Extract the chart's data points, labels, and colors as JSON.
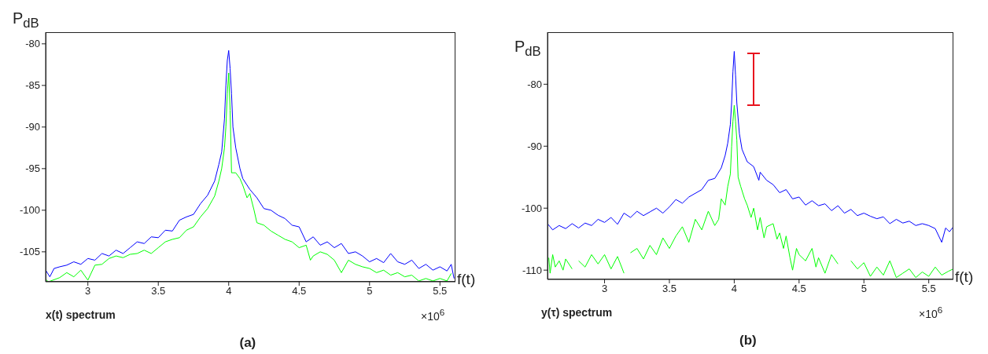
{
  "chart_data": [
    {
      "type": "line",
      "ylabel": "P$_{dB}$",
      "xlabel": "f(t)",
      "annotations": [
        "x(t) spectrum",
        "×10$^{6}$",
        "(a)"
      ],
      "xlim": [
        2.7,
        5.61
      ],
      "ylim": [
        -108.6,
        -78.6
      ],
      "xticks": [
        3,
        3.5,
        4,
        4.5,
        5,
        5.5
      ],
      "yticks": [
        -105,
        -100,
        -95,
        -90,
        -85,
        -80
      ],
      "series": [
        {
          "color": "#0000ff",
          "x": [
            2.7,
            2.73,
            2.76,
            2.8,
            2.85,
            2.9,
            2.95,
            3.0,
            3.05,
            3.1,
            3.15,
            3.2,
            3.25,
            3.3,
            3.35,
            3.4,
            3.45,
            3.5,
            3.55,
            3.6,
            3.65,
            3.7,
            3.75,
            3.8,
            3.85,
            3.9,
            3.93,
            3.95,
            3.97,
            3.98,
            3.99,
            4.0,
            4.01,
            4.02,
            4.03,
            4.05,
            4.08,
            4.1,
            4.15,
            4.2,
            4.25,
            4.3,
            4.35,
            4.4,
            4.45,
            4.5,
            4.55,
            4.6,
            4.65,
            4.7,
            4.75,
            4.8,
            4.85,
            4.9,
            4.95,
            5.0,
            5.05,
            5.1,
            5.15,
            5.2,
            5.25,
            5.3,
            5.35,
            5.4,
            5.45,
            5.5,
            5.55,
            5.58,
            5.6
          ],
          "values": [
            -107.2,
            -108,
            -107,
            -106.8,
            -106.6,
            -106.2,
            -106.5,
            -105.8,
            -106,
            -105.2,
            -105.5,
            -104.8,
            -105.2,
            -104.5,
            -103.8,
            -104,
            -103.2,
            -103.3,
            -102.4,
            -102.5,
            -101.2,
            -100.8,
            -100.5,
            -99.2,
            -98.2,
            -96.5,
            -94.5,
            -93,
            -89,
            -85,
            -82,
            -80.8,
            -83,
            -86,
            -90,
            -92.5,
            -95,
            -96.2,
            -97.5,
            -98.5,
            -99.8,
            -100,
            -100.6,
            -101,
            -101.8,
            -102,
            -103.8,
            -103.2,
            -104.2,
            -103.8,
            -104.5,
            -104,
            -105.2,
            -105,
            -105.5,
            -106.2,
            -105.8,
            -106.3,
            -105.2,
            -106.2,
            -106.5,
            -106,
            -107,
            -106.5,
            -107.2,
            -106.8,
            -107.3,
            -106.5,
            -108.2
          ]
        },
        {
          "color": "#00ff00",
          "x": [
            2.7,
            2.72,
            2.8,
            2.85,
            2.9,
            2.95,
            3.0,
            3.05,
            3.1,
            3.15,
            3.2,
            3.25,
            3.3,
            3.35,
            3.4,
            3.45,
            3.5,
            3.55,
            3.6,
            3.65,
            3.7,
            3.75,
            3.8,
            3.85,
            3.9,
            3.93,
            3.95,
            3.97,
            3.98,
            3.99,
            4.0,
            4.01,
            4.02,
            4.03,
            4.05,
            4.08,
            4.1,
            4.13,
            4.15,
            4.18,
            4.2,
            4.25,
            4.3,
            4.35,
            4.4,
            4.45,
            4.5,
            4.55,
            4.58,
            4.6,
            4.65,
            4.7,
            4.75,
            4.8,
            4.85,
            4.9,
            4.95,
            5.0,
            5.05,
            5.1,
            5.15,
            5.2,
            5.25,
            5.3,
            5.35,
            5.4,
            5.45,
            5.5,
            5.55,
            5.58
          ],
          "values": [
            -108.3,
            -108.6,
            -108.1,
            -107.5,
            -108,
            -107.2,
            -108.4,
            -106.6,
            -106.5,
            -105.8,
            -105.5,
            -105.7,
            -105.3,
            -105.2,
            -104.8,
            -105.2,
            -104.5,
            -103.8,
            -103.5,
            -103.3,
            -102.4,
            -102,
            -100.8,
            -99.8,
            -98.3,
            -96.5,
            -95,
            -92.5,
            -90,
            -86,
            -83.5,
            -88,
            -95.5,
            -95.5,
            -95.5,
            -96.2,
            -97,
            -98.5,
            -98,
            -100,
            -101.5,
            -101.8,
            -102.5,
            -103,
            -103.5,
            -103.8,
            -104.5,
            -104.2,
            -106,
            -105.5,
            -105,
            -105.3,
            -106,
            -107.5,
            -106,
            -106.5,
            -106.8,
            -107,
            -107.5,
            -107.2,
            -107.8,
            -107.5,
            -108,
            -107.8,
            -108.5,
            -108.2,
            -108.5,
            -108.2,
            -108.5,
            -107.6
          ]
        }
      ]
    },
    {
      "type": "line",
      "ylabel": "P$_{dB}$",
      "xlabel": "f(t)",
      "annotations": [
        "y(τ) spectrum",
        "×10$^{6}$",
        "(b)"
      ],
      "xlim": [
        2.56,
        5.69
      ],
      "ylim": [
        -111.5,
        -71.6
      ],
      "xticks": [
        3,
        3.5,
        4,
        4.5,
        5,
        5.5
      ],
      "yticks": [
        -110,
        -100,
        -90,
        -80
      ],
      "series": [
        {
          "color": "#0000ff",
          "x": [
            2.56,
            2.6,
            2.65,
            2.7,
            2.75,
            2.8,
            2.85,
            2.9,
            2.95,
            3.0,
            3.05,
            3.1,
            3.15,
            3.2,
            3.25,
            3.3,
            3.35,
            3.4,
            3.45,
            3.5,
            3.55,
            3.6,
            3.65,
            3.7,
            3.75,
            3.8,
            3.85,
            3.9,
            3.93,
            3.95,
            3.97,
            3.98,
            3.99,
            4.0,
            4.01,
            4.02,
            4.04,
            4.06,
            4.08,
            4.1,
            4.15,
            4.19,
            4.2,
            4.25,
            4.3,
            4.35,
            4.4,
            4.45,
            4.5,
            4.55,
            4.6,
            4.65,
            4.7,
            4.75,
            4.8,
            4.85,
            4.9,
            4.95,
            5.0,
            5.05,
            5.1,
            5.15,
            5.2,
            5.25,
            5.3,
            5.35,
            5.4,
            5.45,
            5.5,
            5.55,
            5.6,
            5.63,
            5.66,
            5.69
          ],
          "values": [
            -102.5,
            -103.5,
            -102.8,
            -103.3,
            -102.5,
            -103.2,
            -102.4,
            -102.8,
            -101.8,
            -102.3,
            -101.5,
            -102.6,
            -100.8,
            -101.5,
            -100.5,
            -101.2,
            -100.6,
            -100,
            -100.8,
            -99.8,
            -98.6,
            -99.2,
            -98.2,
            -97.6,
            -97,
            -95.5,
            -95.2,
            -93.5,
            -91.5,
            -89.5,
            -86.5,
            -83,
            -78,
            -74.7,
            -78.5,
            -83,
            -88,
            -90.5,
            -91.5,
            -92.5,
            -93.3,
            -95.5,
            -94.2,
            -95.5,
            -96.2,
            -97.5,
            -97,
            -98.5,
            -98.2,
            -99.5,
            -98.8,
            -99.6,
            -99.3,
            -100.4,
            -99.6,
            -100.8,
            -100.2,
            -101.2,
            -100.8,
            -101.3,
            -101.7,
            -101.4,
            -102.5,
            -101.8,
            -102.4,
            -102.1,
            -102.8,
            -102.5,
            -102.8,
            -103.3,
            -105.5,
            -103.2,
            -103.8,
            -103
          ]
        },
        {
          "color": "#00ff00",
          "x": [
            2.57,
            2.58,
            2.6,
            2.62,
            2.65,
            2.68,
            2.7,
            2.75,
            2.78,
            2.8,
            2.85,
            2.9,
            2.95,
            3.0,
            3.05,
            3.1,
            3.15,
            3.18,
            3.2,
            3.25,
            3.3,
            3.35,
            3.4,
            3.45,
            3.5,
            3.55,
            3.6,
            3.65,
            3.7,
            3.75,
            3.8,
            3.85,
            3.88,
            3.9,
            3.93,
            3.95,
            3.97,
            3.98,
            3.99,
            4.0,
            4.01,
            4.02,
            4.03,
            4.05,
            4.08,
            4.1,
            4.13,
            4.15,
            4.18,
            4.2,
            4.23,
            4.25,
            4.3,
            4.33,
            4.35,
            4.38,
            4.4,
            4.43,
            4.45,
            4.48,
            4.5,
            4.55,
            4.6,
            4.63,
            4.65,
            4.7,
            4.75,
            4.8,
            4.85,
            4.9,
            4.95,
            5.0,
            5.05,
            5.1,
            5.15,
            5.2,
            5.25,
            5.3,
            5.35,
            5.4,
            5.45,
            5.5,
            5.55,
            5.6,
            5.65,
            5.69
          ],
          "values": [
            -108,
            -110.5,
            -107.5,
            -109.5,
            -108.5,
            -110,
            -108.2,
            -109.8,
            null,
            -108.5,
            -109.5,
            -107.5,
            -109,
            -107.5,
            -109.8,
            -107.8,
            -110.5,
            null,
            -107.2,
            -106.5,
            -108.2,
            -106,
            -107.5,
            -104.8,
            -106.5,
            -104.5,
            -103,
            -105.5,
            -101.8,
            -103.5,
            -100.5,
            -102.8,
            -101.8,
            -98.5,
            -99.5,
            -96.5,
            -94.5,
            -90,
            -86,
            -83.4,
            -86,
            -89,
            -95,
            -96.5,
            -98.5,
            -99.5,
            -101.5,
            -100,
            -103.5,
            -101.5,
            -104.8,
            -103,
            -102.5,
            -105,
            -104,
            -106.5,
            -104.5,
            -108,
            -110,
            -106.5,
            -107.5,
            -108.5,
            -106.5,
            -109.5,
            -108,
            -110.5,
            -107.5,
            -109,
            null,
            -108.5,
            -109.8,
            -108.8,
            -111,
            -109.5,
            -110.8,
            -108.5,
            -111.2,
            -110.5,
            -109.8,
            -111.2,
            -110.3,
            -111,
            -109.5,
            -110.8,
            -110.2,
            -109.8
          ]
        }
      ]
    }
  ]
}
